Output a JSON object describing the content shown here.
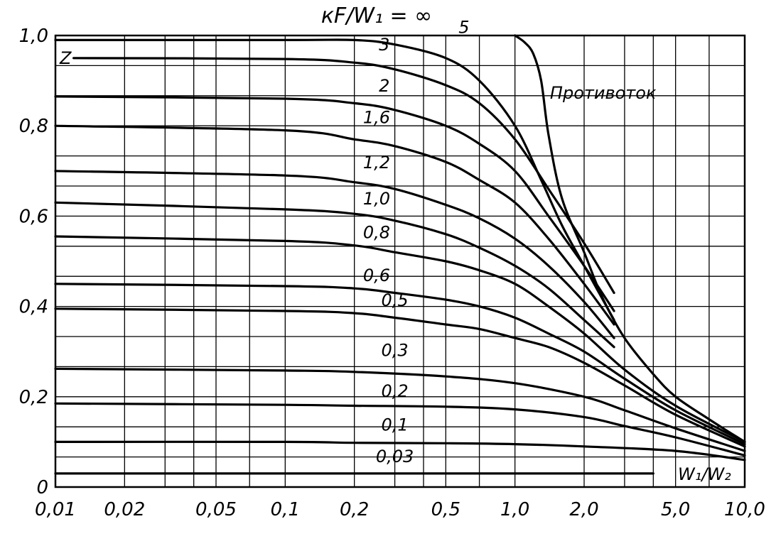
{
  "chart_data": {
    "type": "line",
    "title": "кF/W₁ = ∞",
    "xlabel": "W₁/W₂",
    "ylabel": "",
    "xscale": "log",
    "xlim": [
      0.01,
      10.0
    ],
    "ylim": [
      0,
      1.0
    ],
    "grid": true,
    "x_ticks": [
      {
        "value": 0.01,
        "label": "0,01"
      },
      {
        "value": 0.02,
        "label": "0,02"
      },
      {
        "value": 0.05,
        "label": "0,05"
      },
      {
        "value": 0.1,
        "label": "0,1"
      },
      {
        "value": 0.2,
        "label": "0,2"
      },
      {
        "value": 0.5,
        "label": "0,5"
      },
      {
        "value": 1.0,
        "label": "1,0"
      },
      {
        "value": 2.0,
        "label": "2,0"
      },
      {
        "value": 5.0,
        "label": "5,0"
      },
      {
        "value": 10.0,
        "label": "10,0"
      }
    ],
    "y_ticks": [
      {
        "value": 0,
        "label": "0"
      },
      {
        "value": 0.2,
        "label": "0,2"
      },
      {
        "value": 0.4,
        "label": "0,4"
      },
      {
        "value": 0.6,
        "label": "0,6"
      },
      {
        "value": 0.8,
        "label": "0,8"
      },
      {
        "value": 1.0,
        "label": "1,0"
      }
    ],
    "series_header": "Z",
    "series": [
      {
        "name": "5",
        "x": [
          0.01,
          0.1,
          0.2,
          0.3,
          0.5,
          0.7,
          1.0,
          1.3,
          1.6,
          2.0,
          2.7
        ],
        "y": [
          0.99,
          0.99,
          0.99,
          0.98,
          0.95,
          0.9,
          0.8,
          0.68,
          0.58,
          0.49,
          0.37
        ]
      },
      {
        "name": "3",
        "x": [
          0.012,
          0.1,
          0.2,
          0.3,
          0.5,
          0.7,
          1.0,
          1.4,
          2.0,
          2.7
        ],
        "y": [
          0.95,
          0.948,
          0.94,
          0.925,
          0.89,
          0.85,
          0.77,
          0.66,
          0.54,
          0.43
        ]
      },
      {
        "name": "2",
        "x": [
          0.01,
          0.1,
          0.2,
          0.3,
          0.5,
          0.7,
          1.0,
          1.4,
          2.0,
          2.7
        ],
        "y": [
          0.865,
          0.86,
          0.85,
          0.835,
          0.8,
          0.76,
          0.7,
          0.6,
          0.49,
          0.39
        ]
      },
      {
        "name": "1,6",
        "x": [
          0.01,
          0.1,
          0.2,
          0.3,
          0.5,
          0.7,
          1.0,
          1.4,
          2.0,
          2.7
        ],
        "y": [
          0.8,
          0.79,
          0.77,
          0.755,
          0.72,
          0.68,
          0.63,
          0.55,
          0.45,
          0.36
        ]
      },
      {
        "name": "1,2",
        "x": [
          0.01,
          0.1,
          0.2,
          0.3,
          0.5,
          0.7,
          1.0,
          1.4,
          2.0,
          2.7
        ],
        "y": [
          0.7,
          0.69,
          0.675,
          0.66,
          0.625,
          0.595,
          0.55,
          0.49,
          0.41,
          0.33
        ]
      },
      {
        "name": "1,0",
        "x": [
          0.01,
          0.1,
          0.2,
          0.3,
          0.5,
          0.7,
          1.0,
          1.4,
          2.0,
          2.7
        ],
        "y": [
          0.63,
          0.615,
          0.605,
          0.59,
          0.56,
          0.53,
          0.49,
          0.44,
          0.37,
          0.31
        ]
      },
      {
        "name": "0,8",
        "x": [
          0.01,
          0.1,
          0.2,
          0.3,
          0.5,
          0.7,
          1.0,
          1.4,
          2.0,
          3.0,
          5.0,
          10.0
        ],
        "y": [
          0.555,
          0.545,
          0.535,
          0.52,
          0.5,
          0.48,
          0.45,
          0.4,
          0.34,
          0.26,
          0.18,
          0.1
        ]
      },
      {
        "name": "0,6",
        "x": [
          0.01,
          0.1,
          0.2,
          0.3,
          0.5,
          0.7,
          1.0,
          1.4,
          2.0,
          3.0,
          5.0,
          10.0
        ],
        "y": [
          0.45,
          0.445,
          0.44,
          0.43,
          0.415,
          0.4,
          0.375,
          0.34,
          0.3,
          0.24,
          0.17,
          0.095
        ]
      },
      {
        "name": "0,5",
        "x": [
          0.01,
          0.1,
          0.2,
          0.3,
          0.5,
          0.7,
          1.0,
          1.4,
          2.0,
          3.0,
          5.0,
          10.0
        ],
        "y": [
          0.395,
          0.39,
          0.385,
          0.375,
          0.36,
          0.35,
          0.33,
          0.31,
          0.275,
          0.225,
          0.16,
          0.09
        ]
      },
      {
        "name": "0,3",
        "x": [
          0.01,
          0.1,
          0.2,
          0.5,
          1.0,
          2.0,
          3.0,
          5.0,
          10.0
        ],
        "y": [
          0.262,
          0.258,
          0.255,
          0.245,
          0.23,
          0.2,
          0.17,
          0.13,
          0.08
        ]
      },
      {
        "name": "0,2",
        "x": [
          0.01,
          0.1,
          0.2,
          0.5,
          1.0,
          2.0,
          3.0,
          5.0,
          10.0
        ],
        "y": [
          0.185,
          0.182,
          0.18,
          0.178,
          0.172,
          0.155,
          0.135,
          0.11,
          0.07
        ]
      },
      {
        "name": "0,1",
        "x": [
          0.01,
          0.1,
          0.2,
          0.5,
          1.0,
          2.0,
          5.0,
          10.0
        ],
        "y": [
          0.1,
          0.1,
          0.098,
          0.097,
          0.095,
          0.09,
          0.08,
          0.06
        ]
      },
      {
        "name": "0,03",
        "x": [
          0.01,
          1.0,
          4.0
        ],
        "y": [
          0.03,
          0.03,
          0.03
        ]
      },
      {
        "name": "Противоток",
        "x": [
          1.0,
          1.1,
          1.2,
          1.3,
          1.4,
          1.6,
          2.0,
          2.4,
          3.0,
          4.0,
          5.0,
          7.0,
          10.0
        ],
        "y": [
          1.0,
          0.985,
          0.96,
          0.9,
          0.78,
          0.64,
          0.52,
          0.42,
          0.33,
          0.25,
          0.2,
          0.15,
          0.1
        ]
      }
    ]
  }
}
